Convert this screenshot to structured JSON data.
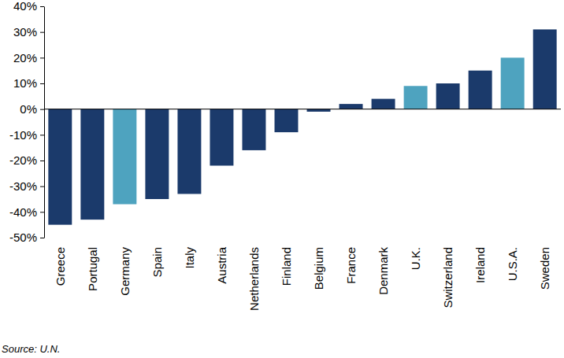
{
  "chart_data": {
    "type": "bar",
    "categories": [
      "Greece",
      "Portugal",
      "Germany",
      "Spain",
      "Italy",
      "Austria",
      "Netherlands",
      "Finland",
      "Belgium",
      "France",
      "Denmark",
      "U.K.",
      "Switzerland",
      "Ireland",
      "U.S.A.",
      "Sweden"
    ],
    "values": [
      -45,
      -43,
      -37,
      -35,
      -33,
      -22,
      -16,
      -9,
      -1,
      2,
      4,
      9,
      10,
      15,
      20,
      31
    ],
    "colors": [
      "#1b3a6b",
      "#1b3a6b",
      "#4ea3bf",
      "#1b3a6b",
      "#1b3a6b",
      "#1b3a6b",
      "#1b3a6b",
      "#1b3a6b",
      "#1b3a6b",
      "#1b3a6b",
      "#1b3a6b",
      "#4ea3bf",
      "#1b3a6b",
      "#1b3a6b",
      "#4ea3bf",
      "#1b3a6b"
    ],
    "ylim": [
      -50,
      40
    ],
    "yticks": [
      {
        "value": -50,
        "label": "-50%"
      },
      {
        "value": -40,
        "label": "-40%"
      },
      {
        "value": -30,
        "label": "-30%"
      },
      {
        "value": -20,
        "label": "-20%"
      },
      {
        "value": -10,
        "label": "-10%"
      },
      {
        "value": 0,
        "label": "0%"
      },
      {
        "value": 10,
        "label": "10%"
      },
      {
        "value": 20,
        "label": "20%"
      },
      {
        "value": 30,
        "label": "30%"
      },
      {
        "value": 40,
        "label": "40%"
      }
    ],
    "grid": false,
    "source": "Source: U.N."
  }
}
